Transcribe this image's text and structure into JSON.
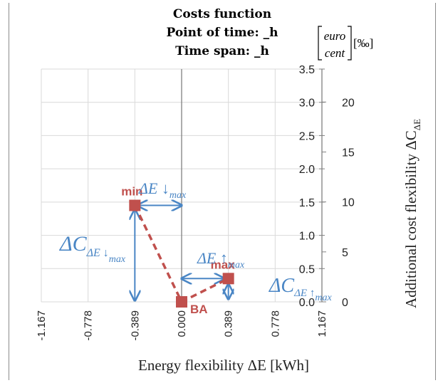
{
  "chart_data": {
    "type": "scatter",
    "title_lines": [
      "Costs function",
      "Point of time:  _h",
      "Time span:  _h"
    ],
    "x_ticks": [
      "-1.167",
      "-0.778",
      "-0.389",
      "0.000",
      "0.389",
      "0.778",
      "1.167"
    ],
    "xlim": [
      -1.167,
      1.167
    ],
    "xlabel": "Energy flexibility ΔE [kWh]",
    "y_ticks_left": [
      "0.0",
      "0.5",
      "1.0",
      "1.5",
      "2.0",
      "2.5",
      "3.0",
      "3.5"
    ],
    "ylim_left": [
      0,
      3.5
    ],
    "y_ticks_right": [
      "0",
      "5",
      "10",
      "15",
      "20"
    ],
    "ylim_right": [
      0,
      23.3
    ],
    "ylabel_right": "Additional cost flexibility ΔC",
    "ylabel_right_sub": "ΔE",
    "unit_top": "euro",
    "unit_bottom": "cent",
    "unit_permille": "[‰]",
    "points": [
      {
        "label": "min",
        "x": -0.389,
        "y": 1.45
      },
      {
        "label": "BA",
        "x": 0.0,
        "y": 0.0
      },
      {
        "label": "max",
        "x": 0.389,
        "y": 0.35
      }
    ],
    "grid": true,
    "colors": {
      "points": "#c0504d",
      "arrows": "#4a86c5",
      "grid": "#d9d9d9",
      "axis": "#808080"
    },
    "annotations": {
      "dE_down": "ΔE ↓",
      "dE_down_sub": "max",
      "dE_up": "ΔE ↑",
      "dE_up_sub": "max",
      "dC_down": "ΔC",
      "dC_down_sub": "ΔE ↓",
      "dC_down_subsub": "max",
      "dC_up": "ΔC",
      "dC_up_sub": "ΔE ↑",
      "dC_up_subsub": "max"
    }
  }
}
